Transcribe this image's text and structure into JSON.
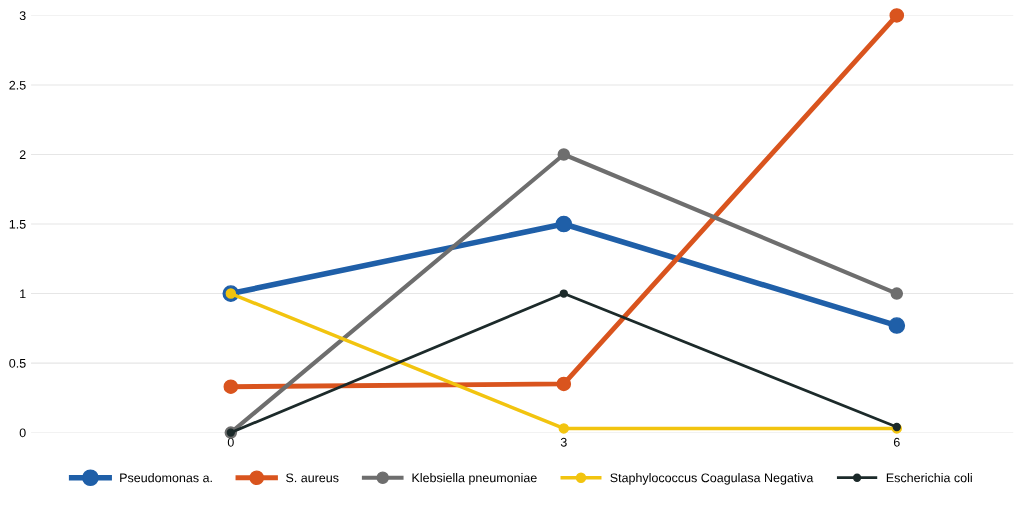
{
  "chart_data": {
    "type": "line",
    "categories": [
      "0",
      "3",
      "6"
    ],
    "ylim": [
      0,
      3
    ],
    "yticks": [
      0,
      0.5,
      1,
      1.5,
      2,
      2.5,
      3
    ],
    "grid": "y",
    "legend": "bottom",
    "marker": "circle",
    "series": [
      {
        "name": "Pseudomonas a.",
        "color": "#1f5fa8",
        "values": [
          1,
          1.5,
          0.77
        ]
      },
      {
        "name": "S. aureus",
        "color": "#d9541e",
        "values": [
          0.33,
          0.35,
          3
        ]
      },
      {
        "name": "Klebsiella pneumoniae",
        "color": "#6e6e6e",
        "values": [
          0,
          2,
          1
        ]
      },
      {
        "name": "Staphylococcus Coagulasa Negativa",
        "color": "#f2c40f",
        "values": [
          1,
          0.03,
          0.03
        ]
      },
      {
        "name": "Escherichia coli",
        "color": "#1c2a2a",
        "values": [
          0,
          1,
          0.04
        ]
      }
    ]
  }
}
